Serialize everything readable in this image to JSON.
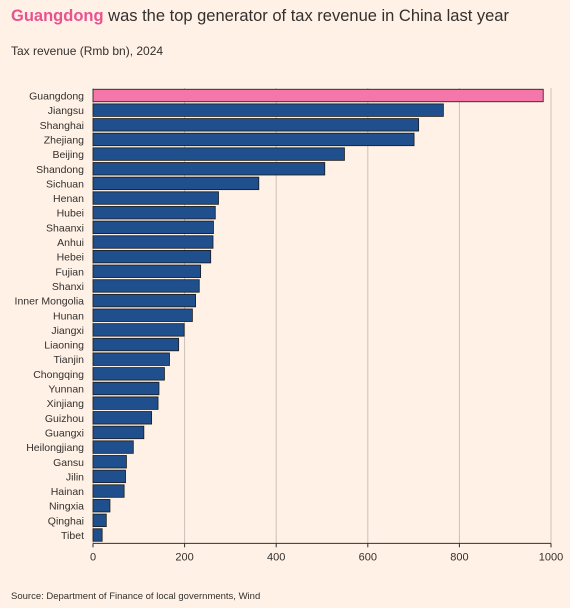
{
  "title_highlight": "Guangdong",
  "title_rest": " was the top generator of tax revenue in China last year",
  "subtitle": "Tax revenue (Rmb bn), 2024",
  "source": "Source: Department of Finance of local governments, Wind",
  "colors": {
    "highlight": "#f576a8",
    "bar": "#1f4f8c",
    "background": "#fff1e5",
    "grid": "#ccc1b7"
  },
  "chart_data": {
    "type": "bar",
    "orientation": "horizontal",
    "title": "Guangdong was the top generator of tax revenue in China last year",
    "subtitle": "Tax revenue (Rmb bn), 2024",
    "xlim": [
      0,
      1000
    ],
    "xticks": [
      0,
      200,
      400,
      600,
      800,
      1000
    ],
    "grid": true,
    "highlight_category": "Guangdong",
    "categories": [
      "Guangdong",
      "Jiangsu",
      "Shanghai",
      "Zhejiang",
      "Beijing",
      "Shandong",
      "Sichuan",
      "Henan",
      "Hubei",
      "Shaanxi",
      "Anhui",
      "Hebei",
      "Fujian",
      "Shanxi",
      "Inner Mongolia",
      "Hunan",
      "Jiangxi",
      "Liaoning",
      "Tianjin",
      "Chongqing",
      "Yunnan",
      "Xinjiang",
      "Guizhou",
      "Guangxi",
      "Heilongjiang",
      "Gansu",
      "Jilin",
      "Hainan",
      "Ningxia",
      "Qinghai",
      "Tibet"
    ],
    "values": [
      983,
      765,
      711,
      701,
      549,
      506,
      362,
      274,
      267,
      263,
      262,
      257,
      235,
      232,
      224,
      217,
      199,
      187,
      167,
      156,
      144,
      142,
      128,
      111,
      88,
      73,
      71,
      68,
      37,
      29,
      20
    ]
  }
}
